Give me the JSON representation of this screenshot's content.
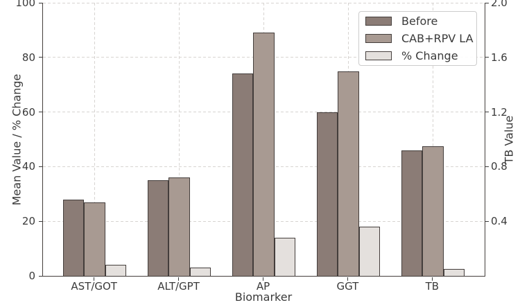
{
  "figure": {
    "type": "grouped-bar-chart-with-twin-axis"
  },
  "colors": {
    "series_before": "#8b7c76",
    "series_after": "#a89a92",
    "series_change": "#e4e0dd",
    "bar_edge": "#433d3b",
    "grid": "#d7d4d1",
    "text": "#3a3a3a",
    "background": "#ffffff"
  },
  "chart_data": {
    "type": "bar",
    "title": "",
    "xlabel": "Biomarker",
    "ylabel": "Mean Value / % Change",
    "ylabel_right": "TB Value",
    "categories": [
      "AST/GOT",
      "ALT/GPT",
      "AP",
      "GGT",
      "TB"
    ],
    "series": [
      {
        "name": "Before",
        "color": "#8b7c76",
        "values": [
          28,
          35,
          74,
          60,
          46
        ]
      },
      {
        "name": "CAB+RPV LA",
        "color": "#a89a92",
        "values": [
          27,
          36,
          89,
          75,
          47.5
        ]
      },
      {
        "name": "% Change",
        "color": "#e4e0dd",
        "values": [
          4,
          3,
          14,
          18,
          2.5
        ]
      }
    ],
    "ylim": [
      0,
      100
    ],
    "yticks": [
      0,
      20,
      40,
      60,
      80,
      100
    ],
    "ylim_right": [
      0,
      2.0
    ],
    "yticks_right": [
      0.4,
      0.8,
      1.2,
      1.6,
      2.0
    ],
    "grid": true,
    "grid_style": "dashed",
    "legend_position": "upper right",
    "bar_width_units": 0.25,
    "xlim_units": [
      -0.6125,
      4.6125
    ]
  }
}
